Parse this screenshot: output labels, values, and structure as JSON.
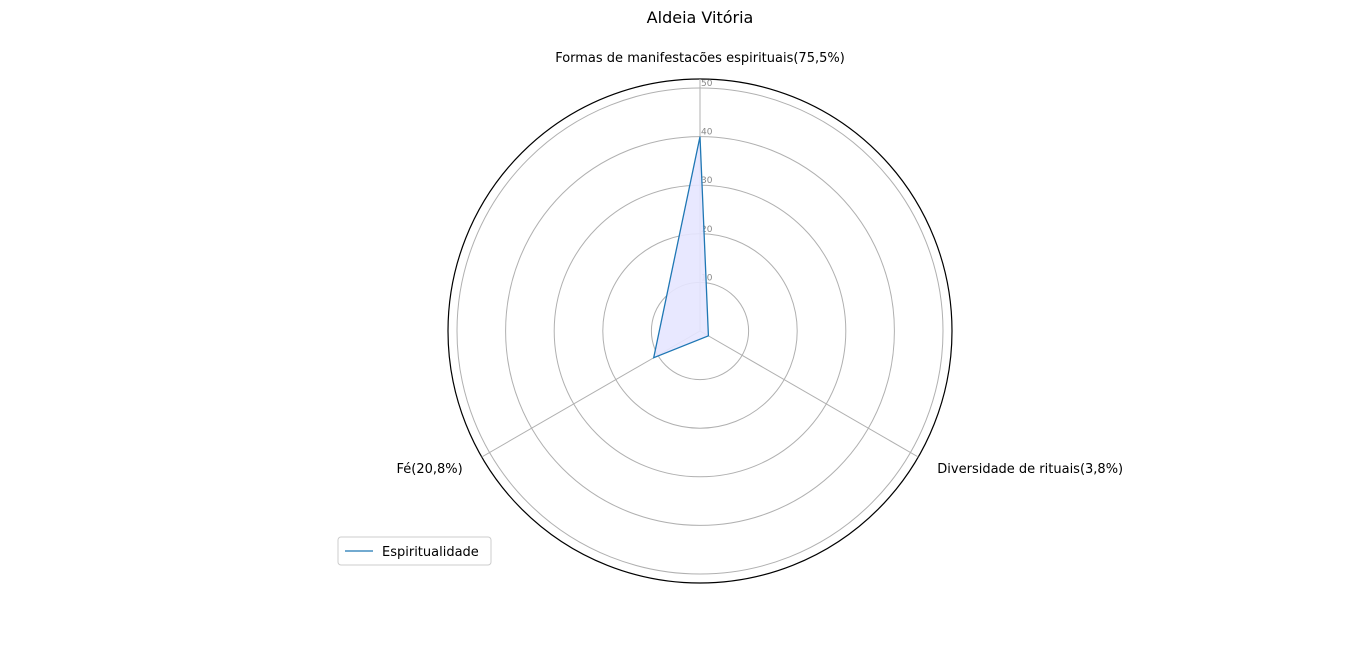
{
  "chart_data": {
    "type": "radar",
    "title": "Aldeia Vitória",
    "axes": [
      "Formas de manifestacões espirituais(75,5%)",
      "Diversidade de rituais(3,8%)",
      "Fé(20,8%)"
    ],
    "rlim": [
      0,
      50
    ],
    "rticks": [
      10,
      20,
      30,
      40,
      50
    ],
    "grid": true,
    "legend_position": "lower-left",
    "series": [
      {
        "name": "Espiritualidade",
        "values": [
          40,
          2,
          11
        ],
        "line_color": "#1f77b4",
        "fill_color": "#e6e6ff"
      }
    ]
  }
}
